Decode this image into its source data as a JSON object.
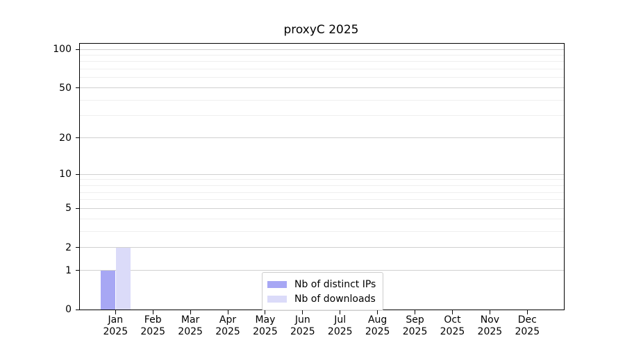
{
  "chart_data": {
    "type": "bar",
    "title": "proxyC 2025",
    "year_label": "2025",
    "categories": [
      "Jan",
      "Feb",
      "Mar",
      "Apr",
      "May",
      "Jun",
      "Jul",
      "Aug",
      "Sep",
      "Oct",
      "Nov",
      "Dec"
    ],
    "series": [
      {
        "name": "Nb of distinct IPs",
        "color": "#a7a7f4",
        "values": [
          1,
          0,
          0,
          0,
          0,
          0,
          0,
          0,
          0,
          0,
          0,
          0
        ]
      },
      {
        "name": "Nb of downloads",
        "color": "#dbdbf9",
        "values": [
          2,
          0,
          0,
          0,
          0,
          0,
          0,
          0,
          0,
          0,
          0,
          0
        ]
      }
    ],
    "xlabel": "",
    "ylabel": "",
    "y_scale": "log1p",
    "y_ticks": [
      0,
      1,
      2,
      5,
      10,
      20,
      50,
      100
    ],
    "y_minor_ticks": [
      3,
      4,
      6,
      7,
      8,
      9,
      30,
      40,
      60,
      70,
      80,
      90
    ],
    "ylim": [
      0,
      110
    ],
    "grid": "horizontal",
    "legend_position": "lower center"
  },
  "colors": {
    "axis": "#000000",
    "grid_major": "#d0d0d0",
    "grid_minor": "#efefef",
    "text": "#000000",
    "legend_border": "#cccccc"
  }
}
